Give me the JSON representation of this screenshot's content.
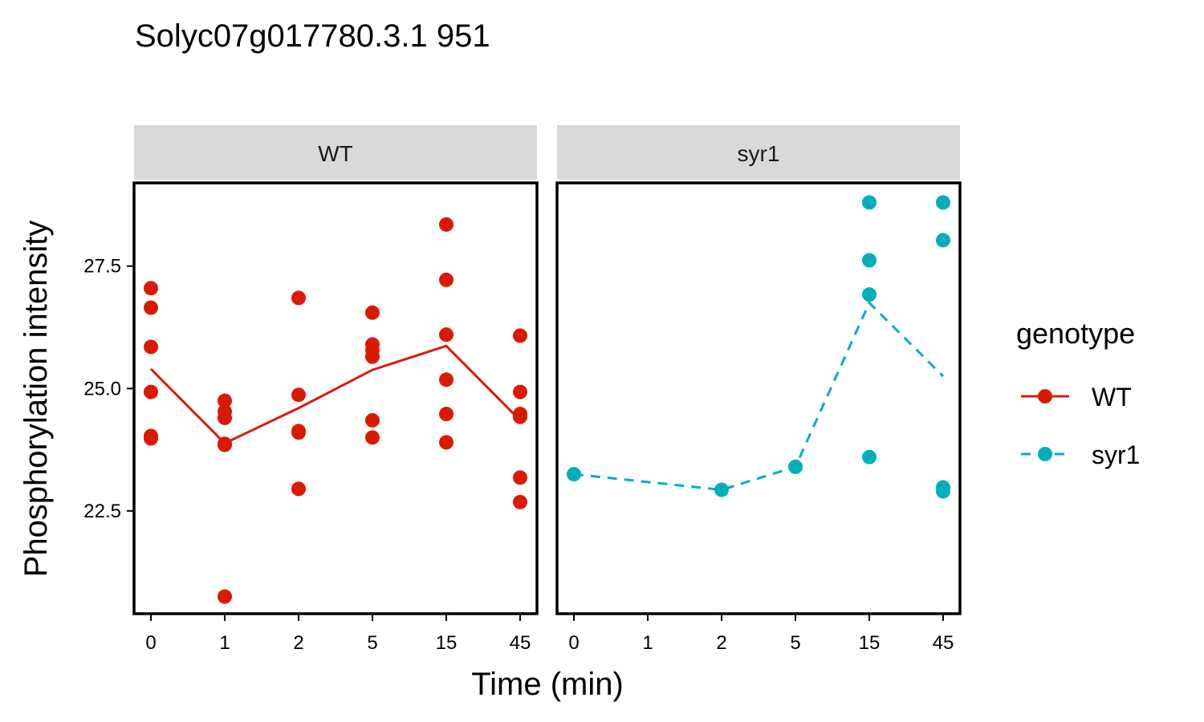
{
  "chart_data": {
    "type": "scatter",
    "title": "Solyc07g017780.3.1 951",
    "xlabel": "Time (min)",
    "ylabel": "Phosphorylation intensity",
    "x_categories": [
      "0",
      "1",
      "2",
      "5",
      "15",
      "45"
    ],
    "y_ticks": [
      "22.5",
      "25.0",
      "27.5"
    ],
    "ylim": [
      20.4,
      29.2
    ],
    "grid": false,
    "legend": {
      "title": "genotype",
      "placement": "right",
      "entries": [
        {
          "label": "WT",
          "color": "#D81B00",
          "line": "solid"
        },
        {
          "label": "syr1",
          "color": "#00AFBB",
          "line": "dashed"
        }
      ]
    },
    "panels": [
      {
        "strip": "WT",
        "color": "#D81B00",
        "line": "solid",
        "points": [
          {
            "x": "0",
            "y": 27.05
          },
          {
            "x": "0",
            "y": 26.65
          },
          {
            "x": "0",
            "y": 25.85
          },
          {
            "x": "0",
            "y": 24.93
          },
          {
            "x": "0",
            "y": 24.03
          },
          {
            "x": "0",
            "y": 23.98
          },
          {
            "x": "1",
            "y": 24.75
          },
          {
            "x": "1",
            "y": 24.53
          },
          {
            "x": "1",
            "y": 24.4
          },
          {
            "x": "1",
            "y": 23.87
          },
          {
            "x": "1",
            "y": 23.85
          },
          {
            "x": "1",
            "y": 20.75
          },
          {
            "x": "2",
            "y": 26.85
          },
          {
            "x": "2",
            "y": 24.87
          },
          {
            "x": "2",
            "y": 24.13
          },
          {
            "x": "2",
            "y": 24.1
          },
          {
            "x": "2",
            "y": 22.95
          },
          {
            "x": "5",
            "y": 26.55
          },
          {
            "x": "5",
            "y": 25.9
          },
          {
            "x": "5",
            "y": 25.78
          },
          {
            "x": "5",
            "y": 25.65
          },
          {
            "x": "5",
            "y": 24.35
          },
          {
            "x": "5",
            "y": 24.0
          },
          {
            "x": "15",
            "y": 28.35
          },
          {
            "x": "15",
            "y": 27.22
          },
          {
            "x": "15",
            "y": 26.1
          },
          {
            "x": "15",
            "y": 25.18
          },
          {
            "x": "15",
            "y": 24.48
          },
          {
            "x": "15",
            "y": 23.9
          },
          {
            "x": "45",
            "y": 26.08
          },
          {
            "x": "45",
            "y": 24.93
          },
          {
            "x": "45",
            "y": 24.48
          },
          {
            "x": "45",
            "y": 24.42
          },
          {
            "x": "45",
            "y": 23.18
          },
          {
            "x": "45",
            "y": 22.68
          }
        ],
        "mean_line": [
          {
            "x": "0",
            "y": 25.4
          },
          {
            "x": "1",
            "y": 23.88
          },
          {
            "x": "2",
            "y": 24.6
          },
          {
            "x": "5",
            "y": 25.38
          },
          {
            "x": "15",
            "y": 25.87
          },
          {
            "x": "45",
            "y": 24.35
          }
        ]
      },
      {
        "strip": "syr1",
        "color": "#00AFBB",
        "line": "dashed",
        "points": [
          {
            "x": "0",
            "y": 23.25
          },
          {
            "x": "2",
            "y": 22.93
          },
          {
            "x": "5",
            "y": 23.4
          },
          {
            "x": "15",
            "y": 28.8
          },
          {
            "x": "15",
            "y": 27.62
          },
          {
            "x": "15",
            "y": 26.92
          },
          {
            "x": "15",
            "y": 23.6
          },
          {
            "x": "45",
            "y": 28.8
          },
          {
            "x": "45",
            "y": 28.03
          },
          {
            "x": "45",
            "y": 22.98
          },
          {
            "x": "45",
            "y": 22.9
          }
        ],
        "mean_line": [
          {
            "x": "0",
            "y": 23.25
          },
          {
            "x": "2",
            "y": 22.93
          },
          {
            "x": "5",
            "y": 23.4
          },
          {
            "x": "15",
            "y": 26.75
          },
          {
            "x": "45",
            "y": 25.25
          }
        ]
      }
    ]
  }
}
